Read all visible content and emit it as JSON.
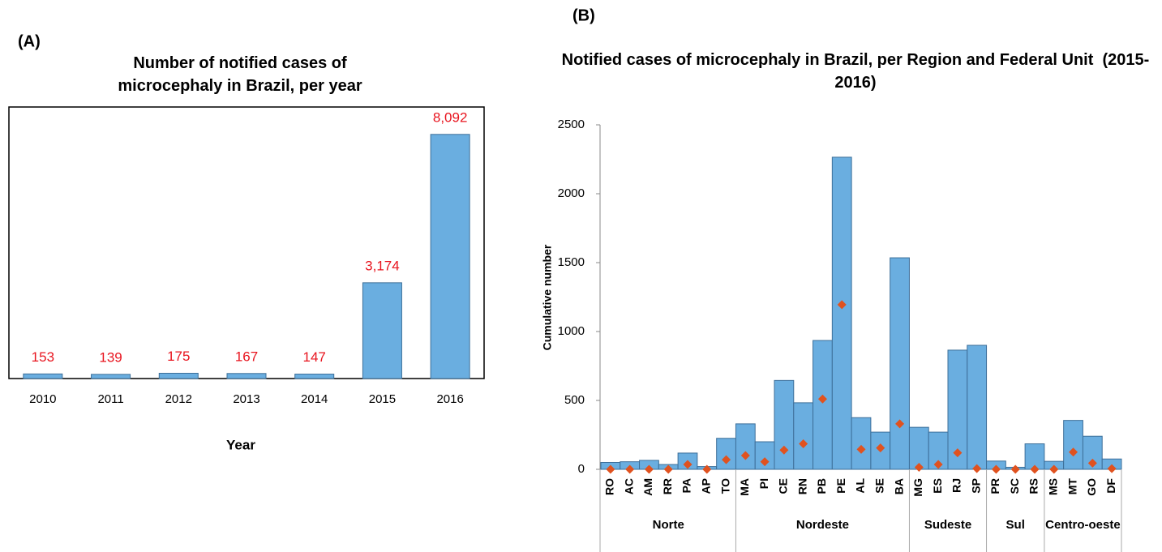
{
  "chart_data": [
    {
      "type": "bar",
      "panel": "(A)",
      "title": "Number of notified cases of microcephaly in Brazil, per year",
      "x_label": "Year",
      "categories": [
        "2010",
        "2011",
        "2012",
        "2013",
        "2014",
        "2015",
        "2016"
      ],
      "values": [
        153,
        139,
        175,
        167,
        147,
        3174,
        8092
      ],
      "value_labels": [
        "153",
        "139",
        "175",
        "167",
        "147",
        "3,174",
        "8,092"
      ],
      "color": "#6aaee0",
      "label_color": "#e8141e",
      "ylim": [
        0,
        9000
      ]
    },
    {
      "type": "bar",
      "panel": "(B)",
      "title": "Notified cases of microcephaly in Brazil, per Region and Federal Unit  (2015-2016)",
      "y_label": "Cumulative number",
      "groups": [
        {
          "name": "Norte",
          "categories": [
            "RO",
            "AC",
            "AM",
            "RR",
            "PA",
            "AP",
            "TO"
          ]
        },
        {
          "name": "Nordeste",
          "categories": [
            "MA",
            "PI",
            "CE",
            "RN",
            "PB",
            "PE",
            "AL",
            "SE",
            "BA"
          ]
        },
        {
          "name": "Sudeste",
          "categories": [
            "MG",
            "ES",
            "RJ",
            "SP"
          ]
        },
        {
          "name": "Sul",
          "categories": [
            "PR",
            "SC",
            "RS"
          ]
        },
        {
          "name": "Centro-oeste",
          "categories": [
            "MS",
            "MT",
            "GO",
            "DF"
          ]
        }
      ],
      "series": [
        {
          "color": "#6aaee0",
          "values": [
            50,
            55,
            65,
            35,
            118,
            20,
            225,
            330,
            200,
            645,
            483,
            935,
            2265,
            375,
            270,
            1535,
            305,
            270,
            865,
            900,
            60,
            15,
            185,
            58,
            355,
            240,
            75
          ]
        },
        {
          "color": "#e0521f",
          "values": [
            0,
            0,
            0,
            0,
            35,
            0,
            70,
            100,
            55,
            140,
            185,
            510,
            1195,
            145,
            155,
            330,
            15,
            35,
            120,
            5,
            0,
            0,
            0,
            0,
            125,
            45,
            5
          ]
        }
      ],
      "ylim": [
        0,
        2500
      ],
      "yticks": [
        0,
        500,
        1000,
        1500,
        2000,
        2500
      ]
    }
  ]
}
